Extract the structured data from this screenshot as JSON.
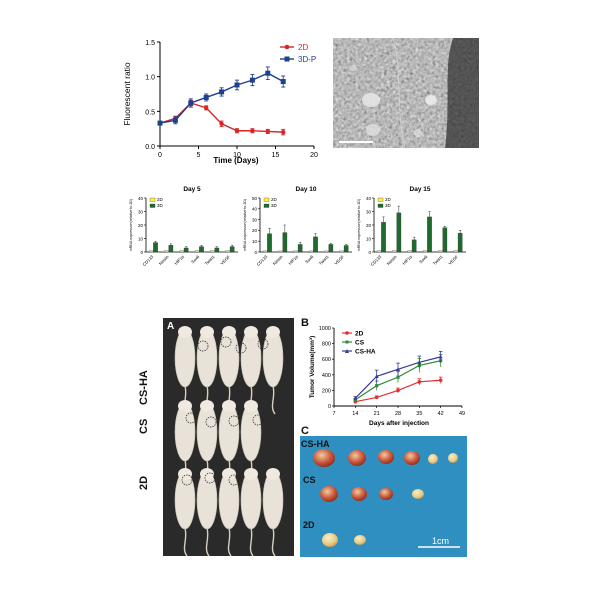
{
  "top_line_chart": {
    "ylabel": "Fluorescent ratio",
    "xlabel": "Time (Days)",
    "legend": [
      "2D",
      "3D-P"
    ]
  },
  "em_image": {
    "scale_label": ""
  },
  "bar_panels": [
    {
      "title": "Day 5",
      "ylabel": "mRNA expression(relative to 2D)"
    },
    {
      "title": "Day 10",
      "ylabel": "mRNA expression(relative to 2D)"
    },
    {
      "title": "Day 15",
      "ylabel": "mRNA expression(relative to 2D)"
    }
  ],
  "mice_panel": {
    "letter": "A",
    "row_labels": [
      "CS-HA",
      "CS",
      "2D"
    ]
  },
  "tumor_chart": {
    "letter": "B",
    "ylabel": "Tumor Volume(mm³)",
    "xlabel": "Days after injection",
    "legend": [
      "2D",
      "CS",
      "CS-HA"
    ]
  },
  "tumor_photo": {
    "letter": "C",
    "row_labels": [
      "CS-HA",
      "CS",
      "2D"
    ],
    "scale_label": "1cm"
  },
  "chart_data": [
    {
      "type": "line",
      "xlabel": "Time (Days)",
      "ylabel": "Fluorescent ratio",
      "xlim": [
        0,
        20
      ],
      "ylim": [
        0,
        1.5
      ],
      "xticks": [
        0,
        5,
        10,
        15,
        20
      ],
      "yticks": [
        0.0,
        0.5,
        1.0,
        1.5
      ],
      "series": [
        {
          "name": "2D",
          "color": "#d62728",
          "x": [
            0,
            2,
            4,
            6,
            8,
            10,
            12,
            14,
            16
          ],
          "y": [
            0.33,
            0.4,
            0.62,
            0.55,
            0.32,
            0.22,
            0.22,
            0.21,
            0.2
          ],
          "err": [
            0.02,
            0.03,
            0.04,
            0.03,
            0.04,
            0.03,
            0.03,
            0.03,
            0.04
          ]
        },
        {
          "name": "3D-P",
          "color": "#1f3f8f",
          "x": [
            0,
            2,
            4,
            6,
            8,
            10,
            12,
            14,
            16
          ],
          "y": [
            0.33,
            0.37,
            0.62,
            0.7,
            0.78,
            0.88,
            0.95,
            1.05,
            0.93
          ],
          "err": [
            0.02,
            0.05,
            0.06,
            0.05,
            0.06,
            0.07,
            0.08,
            0.09,
            0.08
          ]
        }
      ]
    },
    {
      "type": "bar",
      "title": "Day 5",
      "ylabel": "mRNA expression(relative to 2D)",
      "categories": [
        "CD133",
        "Nestin",
        "HIF1α",
        "Sox6",
        "Twist1",
        "VEGF"
      ],
      "ylim": [
        0,
        40
      ],
      "yticks": [
        0,
        10,
        20,
        30,
        40
      ],
      "series": [
        {
          "name": "2D",
          "color": "#f5f542",
          "values": [
            1,
            1,
            1,
            1,
            1,
            1
          ]
        },
        {
          "name": "3D",
          "color": "#1e6b2e",
          "values": [
            7,
            5,
            3,
            4,
            3,
            4
          ],
          "err": [
            1,
            1,
            1,
            1,
            1,
            1
          ]
        }
      ]
    },
    {
      "type": "bar",
      "title": "Day 10",
      "ylabel": "mRNA expression(relative to 2D)",
      "categories": [
        "CD133",
        "Nestin",
        "HIF1α",
        "Sox6",
        "Twist1",
        "VEGF"
      ],
      "ylim": [
        0,
        50
      ],
      "yticks": [
        0,
        10,
        20,
        30,
        40,
        50
      ],
      "series": [
        {
          "name": "2D",
          "color": "#f5f542",
          "values": [
            1,
            1,
            1,
            1,
            1,
            1
          ]
        },
        {
          "name": "3D",
          "color": "#1e6b2e",
          "values": [
            17,
            18,
            7,
            14,
            7,
            6
          ],
          "err": [
            5,
            7,
            2,
            3,
            1,
            1
          ]
        }
      ]
    },
    {
      "type": "bar",
      "title": "Day 15",
      "ylabel": "mRNA expression(relative to 2D)",
      "categories": [
        "CD133",
        "Nestin",
        "HIF1α",
        "Sox6",
        "Twist1",
        "VEGF"
      ],
      "ylim": [
        0,
        40
      ],
      "yticks": [
        0,
        10,
        20,
        30,
        40
      ],
      "series": [
        {
          "name": "2D",
          "color": "#f5f542",
          "values": [
            1,
            1,
            1,
            1,
            1,
            1
          ]
        },
        {
          "name": "3D",
          "color": "#1e6b2e",
          "values": [
            22,
            29,
            9,
            26,
            18,
            14
          ],
          "err": [
            4,
            5,
            2,
            4,
            1,
            2
          ]
        }
      ]
    },
    {
      "type": "line",
      "xlabel": "Days after injection",
      "ylabel": "Tumor Volume(mm³)",
      "xlim": [
        7,
        49
      ],
      "ylim": [
        0,
        1000
      ],
      "xticks": [
        7,
        14,
        21,
        28,
        35,
        42,
        49
      ],
      "yticks": [
        0,
        200,
        400,
        600,
        800,
        1000
      ],
      "series": [
        {
          "name": "2D",
          "color": "#e03030",
          "x": [
            14,
            21,
            28,
            35,
            42
          ],
          "y": [
            55,
            110,
            200,
            310,
            330
          ],
          "err": [
            15,
            20,
            30,
            40,
            40
          ]
        },
        {
          "name": "CS",
          "color": "#2f8a3a",
          "x": [
            14,
            21,
            28,
            35,
            42
          ],
          "y": [
            80,
            260,
            370,
            520,
            580
          ],
          "err": [
            20,
            60,
            70,
            90,
            80
          ]
        },
        {
          "name": "CS-HA",
          "color": "#3a3a9a",
          "x": [
            14,
            21,
            28,
            35,
            42
          ],
          "y": [
            100,
            380,
            470,
            560,
            630
          ],
          "err": [
            20,
            80,
            80,
            80,
            70
          ]
        }
      ]
    }
  ]
}
